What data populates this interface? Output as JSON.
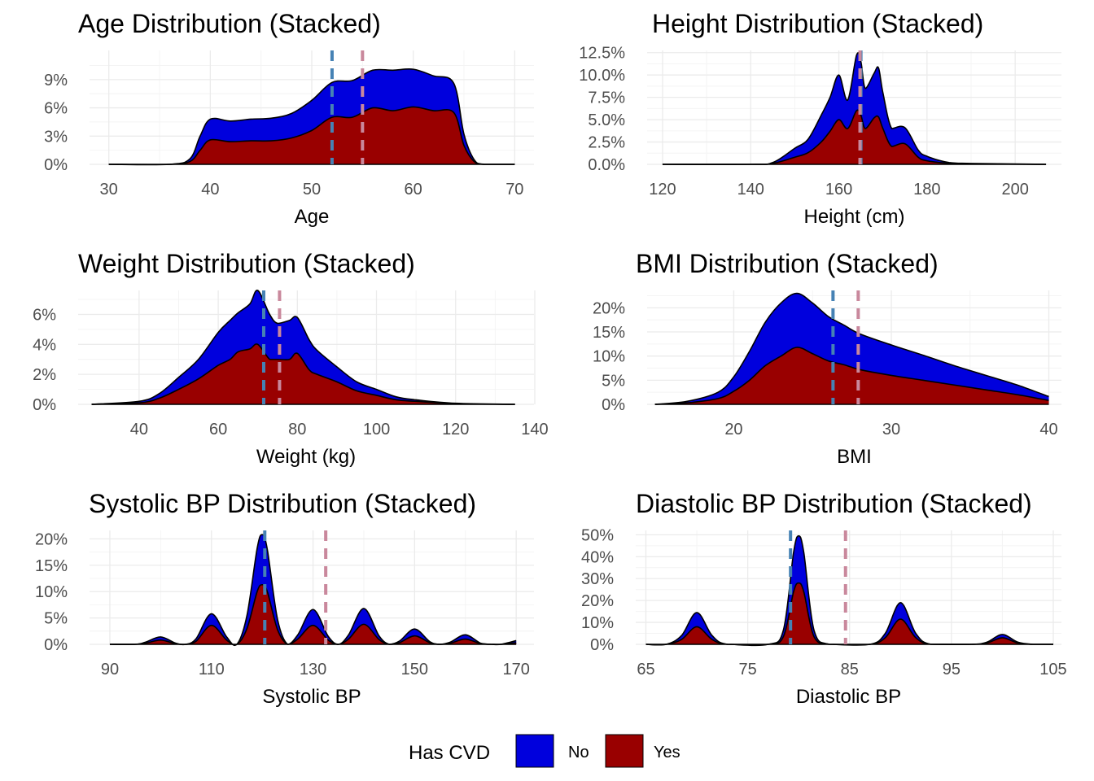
{
  "chart_data": [
    {
      "type": "area",
      "title": "Age Distribution (Stacked)",
      "xlabel": "Age",
      "ylabel": "",
      "xlim": [
        28.1,
        71.9
      ],
      "ylim": [
        0,
        0.121
      ],
      "xticks": [
        30,
        40,
        50,
        60,
        70
      ],
      "xtick_labels": [
        "30",
        "40",
        "50",
        "60",
        "70"
      ],
      "yticks": [
        0,
        0.03,
        0.06,
        0.09
      ],
      "ytick_labels": [
        "0%",
        "3%",
        "6%",
        "9%"
      ],
      "x": [
        30,
        36,
        38,
        39,
        40,
        42,
        44,
        46,
        48,
        50,
        52,
        54,
        56,
        58,
        60,
        62,
        64,
        65,
        66,
        67,
        70
      ],
      "series": [
        {
          "name": "No",
          "values": [
            0,
            0.0,
            0.003,
            0.015,
            0.022,
            0.022,
            0.023,
            0.024,
            0.026,
            0.032,
            0.037,
            0.039,
            0.04,
            0.043,
            0.04,
            0.037,
            0.031,
            0.012,
            0.002,
            0,
            0
          ]
        },
        {
          "name": "Yes",
          "values": [
            0,
            0.0,
            0.003,
            0.015,
            0.026,
            0.024,
            0.025,
            0.025,
            0.028,
            0.036,
            0.05,
            0.05,
            0.06,
            0.057,
            0.061,
            0.057,
            0.055,
            0.02,
            0.003,
            0,
            0
          ]
        }
      ],
      "vlines": [
        {
          "series": "No",
          "x": 52
        },
        {
          "series": "Yes",
          "x": 55
        }
      ]
    },
    {
      "type": "area",
      "title": "Height Distribution (Stacked)",
      "xlabel": "Height (cm)",
      "ylabel": "",
      "xlim": [
        116.5,
        210.5
      ],
      "ylim": [
        0,
        0.1275
      ],
      "xticks": [
        120,
        140,
        160,
        180,
        200
      ],
      "xtick_labels": [
        "120",
        "140",
        "160",
        "180",
        "200"
      ],
      "yticks": [
        0,
        0.025,
        0.05,
        0.075,
        0.1,
        0.125
      ],
      "ytick_labels": [
        "0.0%",
        "2.5%",
        "5.0%",
        "7.5%",
        "10.0%",
        "12.5%"
      ],
      "x": [
        120,
        140,
        145,
        150,
        153,
        156,
        158,
        160,
        162,
        164,
        165,
        166,
        168,
        169,
        170,
        172,
        175,
        178,
        180,
        185,
        190,
        207
      ],
      "series": [
        {
          "name": "No",
          "values": [
            0,
            0,
            0.001,
            0.01,
            0.015,
            0.03,
            0.038,
            0.05,
            0.032,
            0.062,
            0.06,
            0.045,
            0.05,
            0.055,
            0.04,
            0.02,
            0.018,
            0.008,
            0.005,
            0.001,
            0.0005,
            0
          ]
        },
        {
          "name": "Yes",
          "values": [
            0,
            0,
            0.001,
            0.008,
            0.013,
            0.025,
            0.037,
            0.05,
            0.04,
            0.06,
            0.055,
            0.04,
            0.052,
            0.053,
            0.04,
            0.02,
            0.023,
            0.008,
            0.004,
            0.001,
            0.0005,
            0
          ]
        }
      ],
      "vlines": [
        {
          "series": "No",
          "x": 165
        },
        {
          "series": "Yes",
          "x": 164.8
        }
      ]
    },
    {
      "type": "area",
      "title": "Weight Distribution (Stacked)",
      "xlabel": "Weight (kg)",
      "ylabel": "",
      "xlim": [
        24.6,
        139.8
      ],
      "ylim": [
        0,
        0.076
      ],
      "xticks": [
        40,
        60,
        80,
        100,
        120,
        140
      ],
      "xtick_labels": [
        "40",
        "60",
        "80",
        "100",
        "120",
        "140"
      ],
      "yticks": [
        0,
        0.02,
        0.04,
        0.06
      ],
      "ytick_labels": [
        "0%",
        "2%",
        "4%",
        "6%"
      ],
      "x": [
        28,
        40,
        45,
        50,
        55,
        60,
        63,
        65,
        68,
        70,
        73,
        75,
        78,
        80,
        83,
        85,
        90,
        95,
        100,
        105,
        110,
        120,
        135
      ],
      "series": [
        {
          "name": "No",
          "values": [
            0,
            0.001,
            0.003,
            0.008,
            0.013,
            0.022,
            0.026,
            0.026,
            0.03,
            0.036,
            0.03,
            0.024,
            0.026,
            0.024,
            0.02,
            0.016,
            0.01,
            0.006,
            0.004,
            0.002,
            0.001,
            0.0003,
            0
          ]
        },
        {
          "name": "Yes",
          "values": [
            0,
            0.001,
            0.004,
            0.01,
            0.017,
            0.026,
            0.03,
            0.035,
            0.037,
            0.04,
            0.03,
            0.03,
            0.03,
            0.034,
            0.023,
            0.02,
            0.015,
            0.009,
            0.006,
            0.003,
            0.002,
            0.0004,
            0
          ]
        }
      ],
      "vlines": [
        {
          "series": "No",
          "x": 71.5
        },
        {
          "series": "Yes",
          "x": 75.5
        }
      ]
    },
    {
      "type": "area",
      "title": "BMI Distribution (Stacked)",
      "xlabel": "BMI",
      "ylabel": "",
      "xlim": [
        14.5,
        40.8
      ],
      "ylim": [
        0,
        0.236
      ],
      "xticks": [
        20,
        30,
        40
      ],
      "xtick_labels": [
        "20",
        "30",
        "40"
      ],
      "yticks": [
        0,
        0.05,
        0.1,
        0.15,
        0.2
      ],
      "ytick_labels": [
        "0%",
        "5%",
        "10%",
        "15%",
        "20%"
      ],
      "x": [
        15,
        17,
        19,
        20,
        21,
        22,
        23,
        24,
        25,
        26,
        27,
        28,
        30,
        32,
        34,
        36,
        38,
        40
      ],
      "series": [
        {
          "name": "No",
          "values": [
            0,
            0.003,
            0.013,
            0.03,
            0.06,
            0.09,
            0.11,
            0.112,
            0.105,
            0.092,
            0.082,
            0.074,
            0.063,
            0.052,
            0.04,
            0.03,
            0.02,
            0.008
          ]
        },
        {
          "name": "Yes",
          "values": [
            0,
            0.003,
            0.012,
            0.027,
            0.05,
            0.08,
            0.1,
            0.118,
            0.105,
            0.09,
            0.082,
            0.072,
            0.06,
            0.05,
            0.04,
            0.03,
            0.02,
            0.008
          ]
        }
      ],
      "vlines": [
        {
          "series": "No",
          "x": 26.3
        },
        {
          "series": "Yes",
          "x": 27.9
        }
      ]
    },
    {
      "type": "area",
      "title": "Systolic BP Distribution (Stacked)",
      "xlabel": "Systolic BP",
      "ylabel": "",
      "xlim": [
        86,
        173.5
      ],
      "ylim": [
        0,
        0.216
      ],
      "xticks": [
        90,
        110,
        130,
        150,
        170
      ],
      "xtick_labels": [
        "90",
        "110",
        "130",
        "150",
        "170"
      ],
      "yticks": [
        0,
        0.05,
        0.1,
        0.15,
        0.2
      ],
      "ytick_labels": [
        "0%",
        "5%",
        "10%",
        "15%",
        "20%"
      ],
      "x": [
        90,
        95,
        97,
        100,
        103,
        105,
        107,
        110,
        113,
        115,
        117,
        119,
        120,
        121,
        123,
        125,
        127,
        130,
        133,
        135,
        137,
        140,
        143,
        145,
        147,
        150,
        153,
        155,
        157,
        160,
        163,
        165,
        167,
        170
      ],
      "series": [
        {
          "name": "No",
          "values": [
            0,
            0,
            0.002,
            0.006,
            0.001,
            0,
            0.005,
            0.022,
            0.006,
            0,
            0.025,
            0.082,
            0.095,
            0.08,
            0.02,
            0,
            0.008,
            0.03,
            0.007,
            0,
            0.008,
            0.03,
            0.007,
            0,
            0.003,
            0.013,
            0.002,
            0,
            0.002,
            0.008,
            0.001,
            0,
            0,
            0.004
          ]
        },
        {
          "name": "Yes",
          "values": [
            0,
            0,
            0.002,
            0.008,
            0.001,
            0,
            0.006,
            0.036,
            0.008,
            0,
            0.03,
            0.1,
            0.113,
            0.1,
            0.028,
            0,
            0.01,
            0.036,
            0.008,
            0,
            0.01,
            0.038,
            0.009,
            0,
            0.003,
            0.016,
            0.003,
            0,
            0.002,
            0.01,
            0.001,
            0,
            0,
            0.003
          ]
        }
      ],
      "vlines": [
        {
          "series": "No",
          "x": 120.5
        },
        {
          "series": "Yes",
          "x": 132.5
        }
      ]
    },
    {
      "type": "area",
      "title": "Diastolic BP Distribution (Stacked)",
      "xlabel": "Diastolic BP",
      "ylabel": "",
      "xlim": [
        64,
        105.8
      ],
      "ylim": [
        0,
        0.52
      ],
      "xticks": [
        65,
        75,
        85,
        95,
        105
      ],
      "xtick_labels": [
        "65",
        "75",
        "85",
        "95",
        "105"
      ],
      "yticks": [
        0,
        0.1,
        0.2,
        0.3,
        0.4,
        0.5
      ],
      "ytick_labels": [
        "0%",
        "10%",
        "20%",
        "30%",
        "40%",
        "50%"
      ],
      "x": [
        65,
        67,
        68.5,
        70,
        71.5,
        73,
        77,
        78.5,
        79.5,
        80,
        80.5,
        81.5,
        83,
        87,
        88.5,
        90,
        91.5,
        93,
        97,
        98.5,
        100,
        101.5,
        103,
        105
      ],
      "series": [
        {
          "name": "No",
          "values": [
            0,
            0,
            0.018,
            0.065,
            0.018,
            0,
            0,
            0.03,
            0.18,
            0.215,
            0.18,
            0.03,
            0,
            0,
            0.02,
            0.075,
            0.02,
            0,
            0,
            0.004,
            0.015,
            0.004,
            0,
            0
          ]
        },
        {
          "name": "Yes",
          "values": [
            0,
            0,
            0.022,
            0.08,
            0.022,
            0,
            0,
            0.035,
            0.24,
            0.28,
            0.24,
            0.035,
            0,
            0,
            0.03,
            0.115,
            0.03,
            0,
            0,
            0.006,
            0.03,
            0.006,
            0,
            0
          ]
        }
      ],
      "vlines": [
        {
          "series": "No",
          "x": 79.2
        },
        {
          "series": "Yes",
          "x": 84.6
        }
      ]
    }
  ],
  "legend": {
    "title": "Has CVD",
    "position": "bottom",
    "items": [
      {
        "label": "No",
        "color": "#0000DD"
      },
      {
        "label": "Yes",
        "color": "#990000"
      }
    ]
  },
  "colors": {
    "no_fill": "#0000DD",
    "yes_fill": "#990000",
    "outline": "#000000",
    "mean_no": "#4682B4",
    "mean_yes": "#C9889C",
    "grid_major": "#EBEBEB",
    "grid_minor": "#F4F4F4",
    "tick_text": "#4D4D4D"
  }
}
